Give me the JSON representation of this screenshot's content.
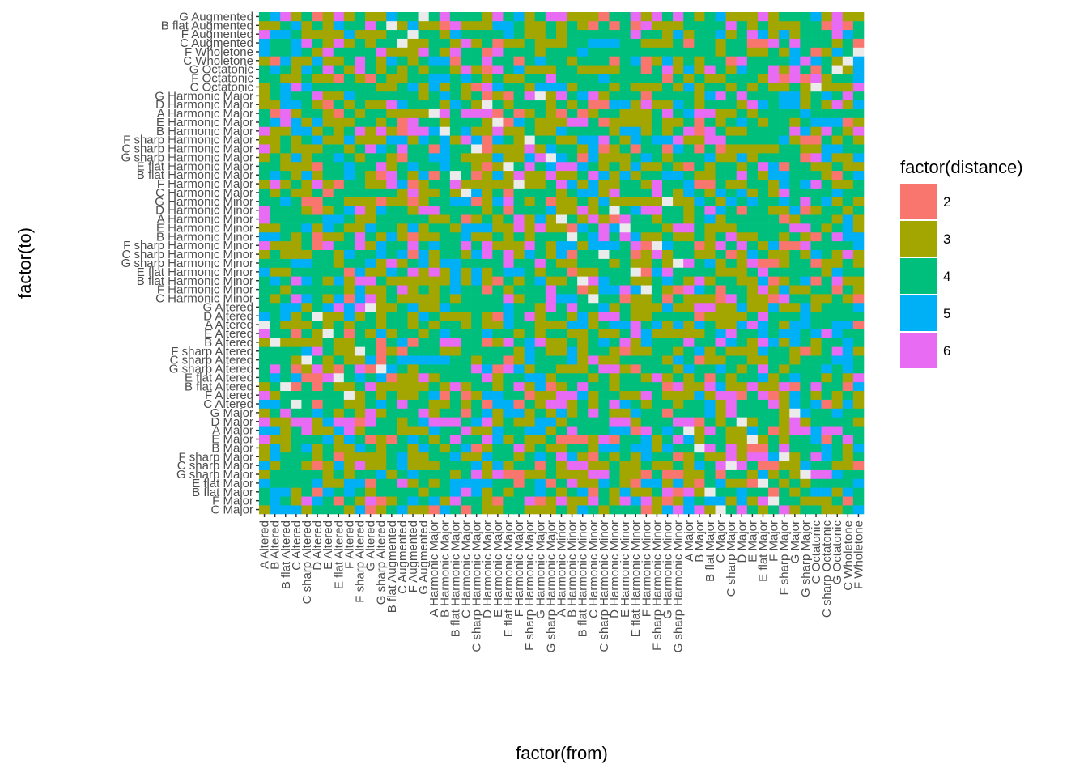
{
  "chart_data": {
    "type": "heatmap",
    "xlabel": "factor(from)",
    "ylabel": "factor(to)",
    "legend": {
      "title": "factor(distance)",
      "placement": "right",
      "levels": [
        {
          "label": "2",
          "color": "#F8766D"
        },
        {
          "label": "3",
          "color": "#A3A500"
        },
        {
          "label": "4",
          "color": "#00BF7D"
        },
        {
          "label": "5",
          "color": "#00B0F6"
        },
        {
          "label": "6",
          "color": "#E76BF3"
        }
      ]
    },
    "grid": true,
    "panel_background": "#EBEBEB",
    "x_categories": [
      "A Altered",
      "B Altered",
      "B flat Altered",
      "C Altered",
      "C sharp Altered",
      "D Altered",
      "E Altered",
      "E flat Altered",
      "F Altered",
      "F sharp Altered",
      "G Altered",
      "G sharp Altered",
      "B flat Augmented",
      "C Augmented",
      "F Augmented",
      "G Augmented",
      "A Harmonic Major",
      "B Harmonic Major",
      "B flat Harmonic Major",
      "C Harmonic Major",
      "C sharp Harmonic Major",
      "D Harmonic Major",
      "E Harmonic Major",
      "E flat Harmonic Major",
      "F Harmonic Major",
      "F sharp Harmonic Major",
      "G Harmonic Major",
      "G sharp Harmonic Major",
      "A Harmonic Minor",
      "B Harmonic Minor",
      "B flat Harmonic Minor",
      "C Harmonic Minor",
      "C sharp Harmonic Minor",
      "D Harmonic Minor",
      "E Harmonic Minor",
      "E flat Harmonic Minor",
      "F Harmonic Minor",
      "F sharp Harmonic Minor",
      "G Harmonic Minor",
      "G sharp Harmonic Minor",
      "A Major",
      "B Major",
      "B flat Major",
      "C Major",
      "C sharp Major",
      "D Major",
      "E Major",
      "E flat Major",
      "F Major",
      "F sharp Major",
      "G Major",
      "G sharp Major",
      "C Octatonic",
      "C sharp Octatonic",
      "G Octatonic",
      "C Wholetone",
      "F Wholetone"
    ],
    "y_categories": [
      "C Major",
      "F Major",
      "B flat Major",
      "E flat Major",
      "G sharp Major",
      "C sharp Major",
      "F sharp Major",
      "B Major",
      "E Major",
      "A Major",
      "D Major",
      "G Major",
      "C Altered",
      "F Altered",
      "B flat Altered",
      "E flat Altered",
      "G sharp Altered",
      "C sharp Altered",
      "F sharp Altered",
      "B Altered",
      "E Altered",
      "A Altered",
      "D Altered",
      "G Altered",
      "C Harmonic Minor",
      "F Harmonic Minor",
      "B flat Harmonic Minor",
      "E flat Harmonic Minor",
      "G sharp Harmonic Minor",
      "C sharp Harmonic Minor",
      "F sharp Harmonic Minor",
      "B Harmonic Minor",
      "E Harmonic Minor",
      "A Harmonic Minor",
      "D Harmonic Minor",
      "G Harmonic Minor",
      "C Harmonic Major",
      "F Harmonic Major",
      "B flat Harmonic Major",
      "E flat Harmonic Major",
      "G sharp Harmonic Major",
      "C sharp Harmonic Major",
      "F sharp Harmonic Major",
      "B Harmonic Major",
      "E Harmonic Major",
      "A Harmonic Major",
      "D Harmonic Major",
      "G Harmonic Major",
      "C Octatonic",
      "F Octatonic",
      "G Octatonic",
      "C Wholetone",
      "F Wholetone",
      "C Augmented",
      "F Augmented",
      "B flat Augmented",
      "G Augmented"
    ],
    "value_levels": [
      2,
      3,
      4,
      5,
      6
    ],
    "values_note": "",
    "cells": []
  }
}
